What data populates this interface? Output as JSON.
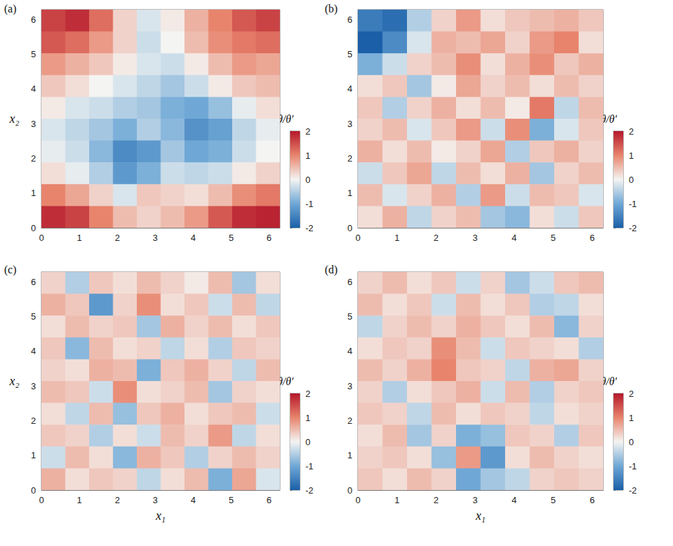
{
  "chart_data": [
    {
      "type": "heatmap",
      "title": "(a)",
      "ylabel": "x₂",
      "xlim": [
        0,
        6.2832
      ],
      "xticks": [
        0,
        1,
        2,
        3,
        4,
        5,
        6
      ],
      "ylim": [
        0,
        6.2832
      ],
      "yticks": [
        0,
        1,
        2,
        3,
        4,
        5,
        6
      ],
      "cells": [
        [
          1.6,
          1.8,
          1.2,
          0.3,
          -0.2,
          0.1,
          0.6,
          1.0,
          1.4,
          1.6
        ],
        [
          1.4,
          1.2,
          0.8,
          0.3,
          -0.3,
          0.0,
          0.5,
          0.9,
          1.1,
          1.2
        ],
        [
          0.8,
          0.6,
          0.4,
          0.1,
          -0.2,
          -0.3,
          0.1,
          0.5,
          0.8,
          0.7
        ],
        [
          0.4,
          0.2,
          0.0,
          -0.2,
          -0.4,
          -0.6,
          -0.3,
          0.1,
          0.4,
          0.5
        ],
        [
          0.1,
          -0.2,
          -0.3,
          -0.5,
          -0.6,
          -0.9,
          -1.0,
          -0.7,
          -0.1,
          0.2
        ],
        [
          -0.2,
          -0.4,
          -0.6,
          -0.9,
          -0.5,
          -0.8,
          -1.3,
          -1.1,
          -0.4,
          -0.1
        ],
        [
          -0.1,
          -0.3,
          -0.8,
          -1.4,
          -1.2,
          -0.6,
          -1.0,
          -0.9,
          -0.3,
          0.0
        ],
        [
          0.2,
          -0.1,
          -0.5,
          -1.2,
          -0.9,
          -0.3,
          -0.4,
          -0.3,
          0.1,
          0.3
        ],
        [
          1.0,
          0.7,
          0.3,
          -0.2,
          0.4,
          0.3,
          0.2,
          0.5,
          0.9,
          1.1
        ],
        [
          1.8,
          1.6,
          1.0,
          0.5,
          0.3,
          0.5,
          0.8,
          1.4,
          1.8,
          1.9
        ]
      ],
      "colorbar": {
        "label": "θ/θ′",
        "range": [
          -2,
          2
        ],
        "ticks": [
          -2,
          -1,
          0,
          1,
          2
        ]
      }
    },
    {
      "type": "heatmap",
      "title": "(b)",
      "xlim": [
        0,
        6.2832
      ],
      "xticks": [
        0,
        1,
        2,
        3,
        4,
        5,
        6
      ],
      "ylim": [
        0,
        6.2832
      ],
      "yticks": [
        0,
        1,
        2,
        3,
        4,
        5,
        6
      ],
      "cells": [
        [
          -1.6,
          -1.8,
          -0.5,
          0.3,
          0.8,
          0.2,
          0.4,
          0.5,
          0.6,
          0.4
        ],
        [
          -2.0,
          -1.4,
          -0.2,
          0.6,
          0.5,
          0.7,
          0.3,
          0.8,
          1.0,
          0.2
        ],
        [
          -0.9,
          -0.3,
          0.3,
          0.5,
          0.9,
          0.2,
          0.6,
          0.9,
          0.4,
          0.6
        ],
        [
          0.2,
          0.4,
          -0.6,
          0.1,
          0.7,
          0.3,
          0.5,
          0.2,
          0.5,
          0.3
        ],
        [
          0.4,
          -0.5,
          0.3,
          0.6,
          0.2,
          0.5,
          0.1,
          1.1,
          -0.4,
          0.5
        ],
        [
          0.3,
          0.5,
          -0.2,
          0.4,
          0.8,
          -0.3,
          0.9,
          -0.9,
          -0.2,
          0.4
        ],
        [
          0.6,
          0.2,
          0.5,
          0.1,
          0.3,
          0.7,
          -0.5,
          0.4,
          0.6,
          0.3
        ],
        [
          -0.3,
          0.4,
          0.7,
          -0.4,
          0.5,
          0.2,
          0.6,
          -0.6,
          0.3,
          0.5
        ],
        [
          0.5,
          -0.2,
          0.3,
          0.6,
          -0.5,
          0.8,
          -0.3,
          0.5,
          0.4,
          -0.2
        ],
        [
          0.2,
          0.6,
          -0.4,
          0.3,
          0.5,
          -0.6,
          -0.8,
          0.2,
          -0.3,
          0.4
        ]
      ],
      "colorbar": {
        "label": "θ/θ′",
        "range": [
          -2,
          2
        ],
        "ticks": [
          -2,
          -1,
          0,
          1,
          2
        ]
      }
    },
    {
      "type": "heatmap",
      "title": "(c)",
      "xlabel": "x₁",
      "ylabel": "x₂",
      "xlim": [
        0,
        6.2832
      ],
      "xticks": [
        0,
        1,
        2,
        3,
        4,
        5,
        6
      ],
      "ylim": [
        0,
        6.2832
      ],
      "yticks": [
        0,
        1,
        2,
        3,
        4,
        5,
        6
      ],
      "cells": [
        [
          0.3,
          -0.5,
          0.4,
          0.2,
          0.5,
          0.3,
          0.1,
          0.5,
          -0.6,
          0.2
        ],
        [
          0.6,
          0.4,
          -1.2,
          0.3,
          0.9,
          0.2,
          0.4,
          -0.3,
          0.5,
          -0.4
        ],
        [
          0.2,
          0.5,
          0.3,
          0.4,
          -0.6,
          0.6,
          0.3,
          0.5,
          0.2,
          0.4
        ],
        [
          0.4,
          -0.8,
          0.5,
          0.2,
          0.3,
          -0.4,
          0.2,
          -0.5,
          0.4,
          0.3
        ],
        [
          0.3,
          0.2,
          0.6,
          0.5,
          -0.9,
          0.4,
          0.6,
          0.3,
          -0.4,
          0.5
        ],
        [
          0.5,
          0.4,
          -0.3,
          0.9,
          0.2,
          0.3,
          0.5,
          -0.6,
          0.3,
          0.2
        ],
        [
          0.2,
          -0.4,
          0.5,
          -0.7,
          0.4,
          0.6,
          0.2,
          0.4,
          0.5,
          -0.3
        ],
        [
          0.4,
          0.3,
          -0.5,
          0.2,
          -0.3,
          0.5,
          0.3,
          0.8,
          -0.4,
          0.2
        ],
        [
          -0.3,
          0.5,
          0.2,
          -0.8,
          0.6,
          0.4,
          -0.5,
          0.3,
          0.5,
          0.3
        ],
        [
          0.6,
          0.2,
          0.4,
          0.3,
          -0.4,
          0.2,
          0.5,
          -0.9,
          0.7,
          -0.2
        ]
      ],
      "colorbar": {
        "label": "θ/θ′",
        "range": [
          -2,
          2
        ],
        "ticks": [
          -2,
          -1,
          0,
          1,
          2
        ]
      }
    },
    {
      "type": "heatmap",
      "title": "(d)",
      "xlabel": "x₁",
      "xlim": [
        0,
        6.2832
      ],
      "xticks": [
        0,
        1,
        2,
        3,
        4,
        5,
        6
      ],
      "ylim": [
        0,
        6.2832
      ],
      "yticks": [
        0,
        1,
        2,
        3,
        4,
        5,
        6
      ],
      "cells": [
        [
          0.3,
          0.5,
          0.2,
          0.4,
          -0.3,
          0.3,
          -0.6,
          -0.3,
          0.4,
          0.5
        ],
        [
          0.5,
          0.2,
          0.4,
          -0.3,
          0.5,
          0.2,
          0.4,
          -0.5,
          -0.4,
          0.2
        ],
        [
          -0.4,
          0.3,
          0.5,
          0.3,
          0.6,
          0.4,
          0.2,
          0.5,
          -0.8,
          0.3
        ],
        [
          0.2,
          0.4,
          0.3,
          0.9,
          0.5,
          -0.3,
          0.4,
          0.3,
          0.2,
          -0.5
        ],
        [
          0.5,
          0.3,
          0.6,
          1.0,
          0.4,
          0.3,
          -0.4,
          0.6,
          0.7,
          0.3
        ],
        [
          0.3,
          -0.5,
          0.2,
          0.4,
          0.6,
          -0.3,
          0.5,
          -0.5,
          0.3,
          0.4
        ],
        [
          0.4,
          0.3,
          -0.4,
          0.5,
          0.2,
          0.4,
          0.3,
          -0.4,
          0.2,
          0.3
        ],
        [
          0.2,
          0.5,
          -0.6,
          0.3,
          -0.9,
          -0.7,
          0.4,
          0.3,
          -0.5,
          0.4
        ],
        [
          0.3,
          0.4,
          0.2,
          -0.7,
          0.8,
          -1.2,
          0.2,
          0.5,
          0.3,
          0.2
        ],
        [
          0.4,
          0.2,
          0.5,
          0.3,
          -1.0,
          -0.6,
          -0.4,
          0.3,
          0.4,
          0.3
        ]
      ],
      "colorbar": {
        "label": "θ/θ′",
        "range": [
          -2,
          2
        ],
        "ticks": [
          -2,
          -1,
          0,
          1,
          2
        ]
      }
    }
  ]
}
